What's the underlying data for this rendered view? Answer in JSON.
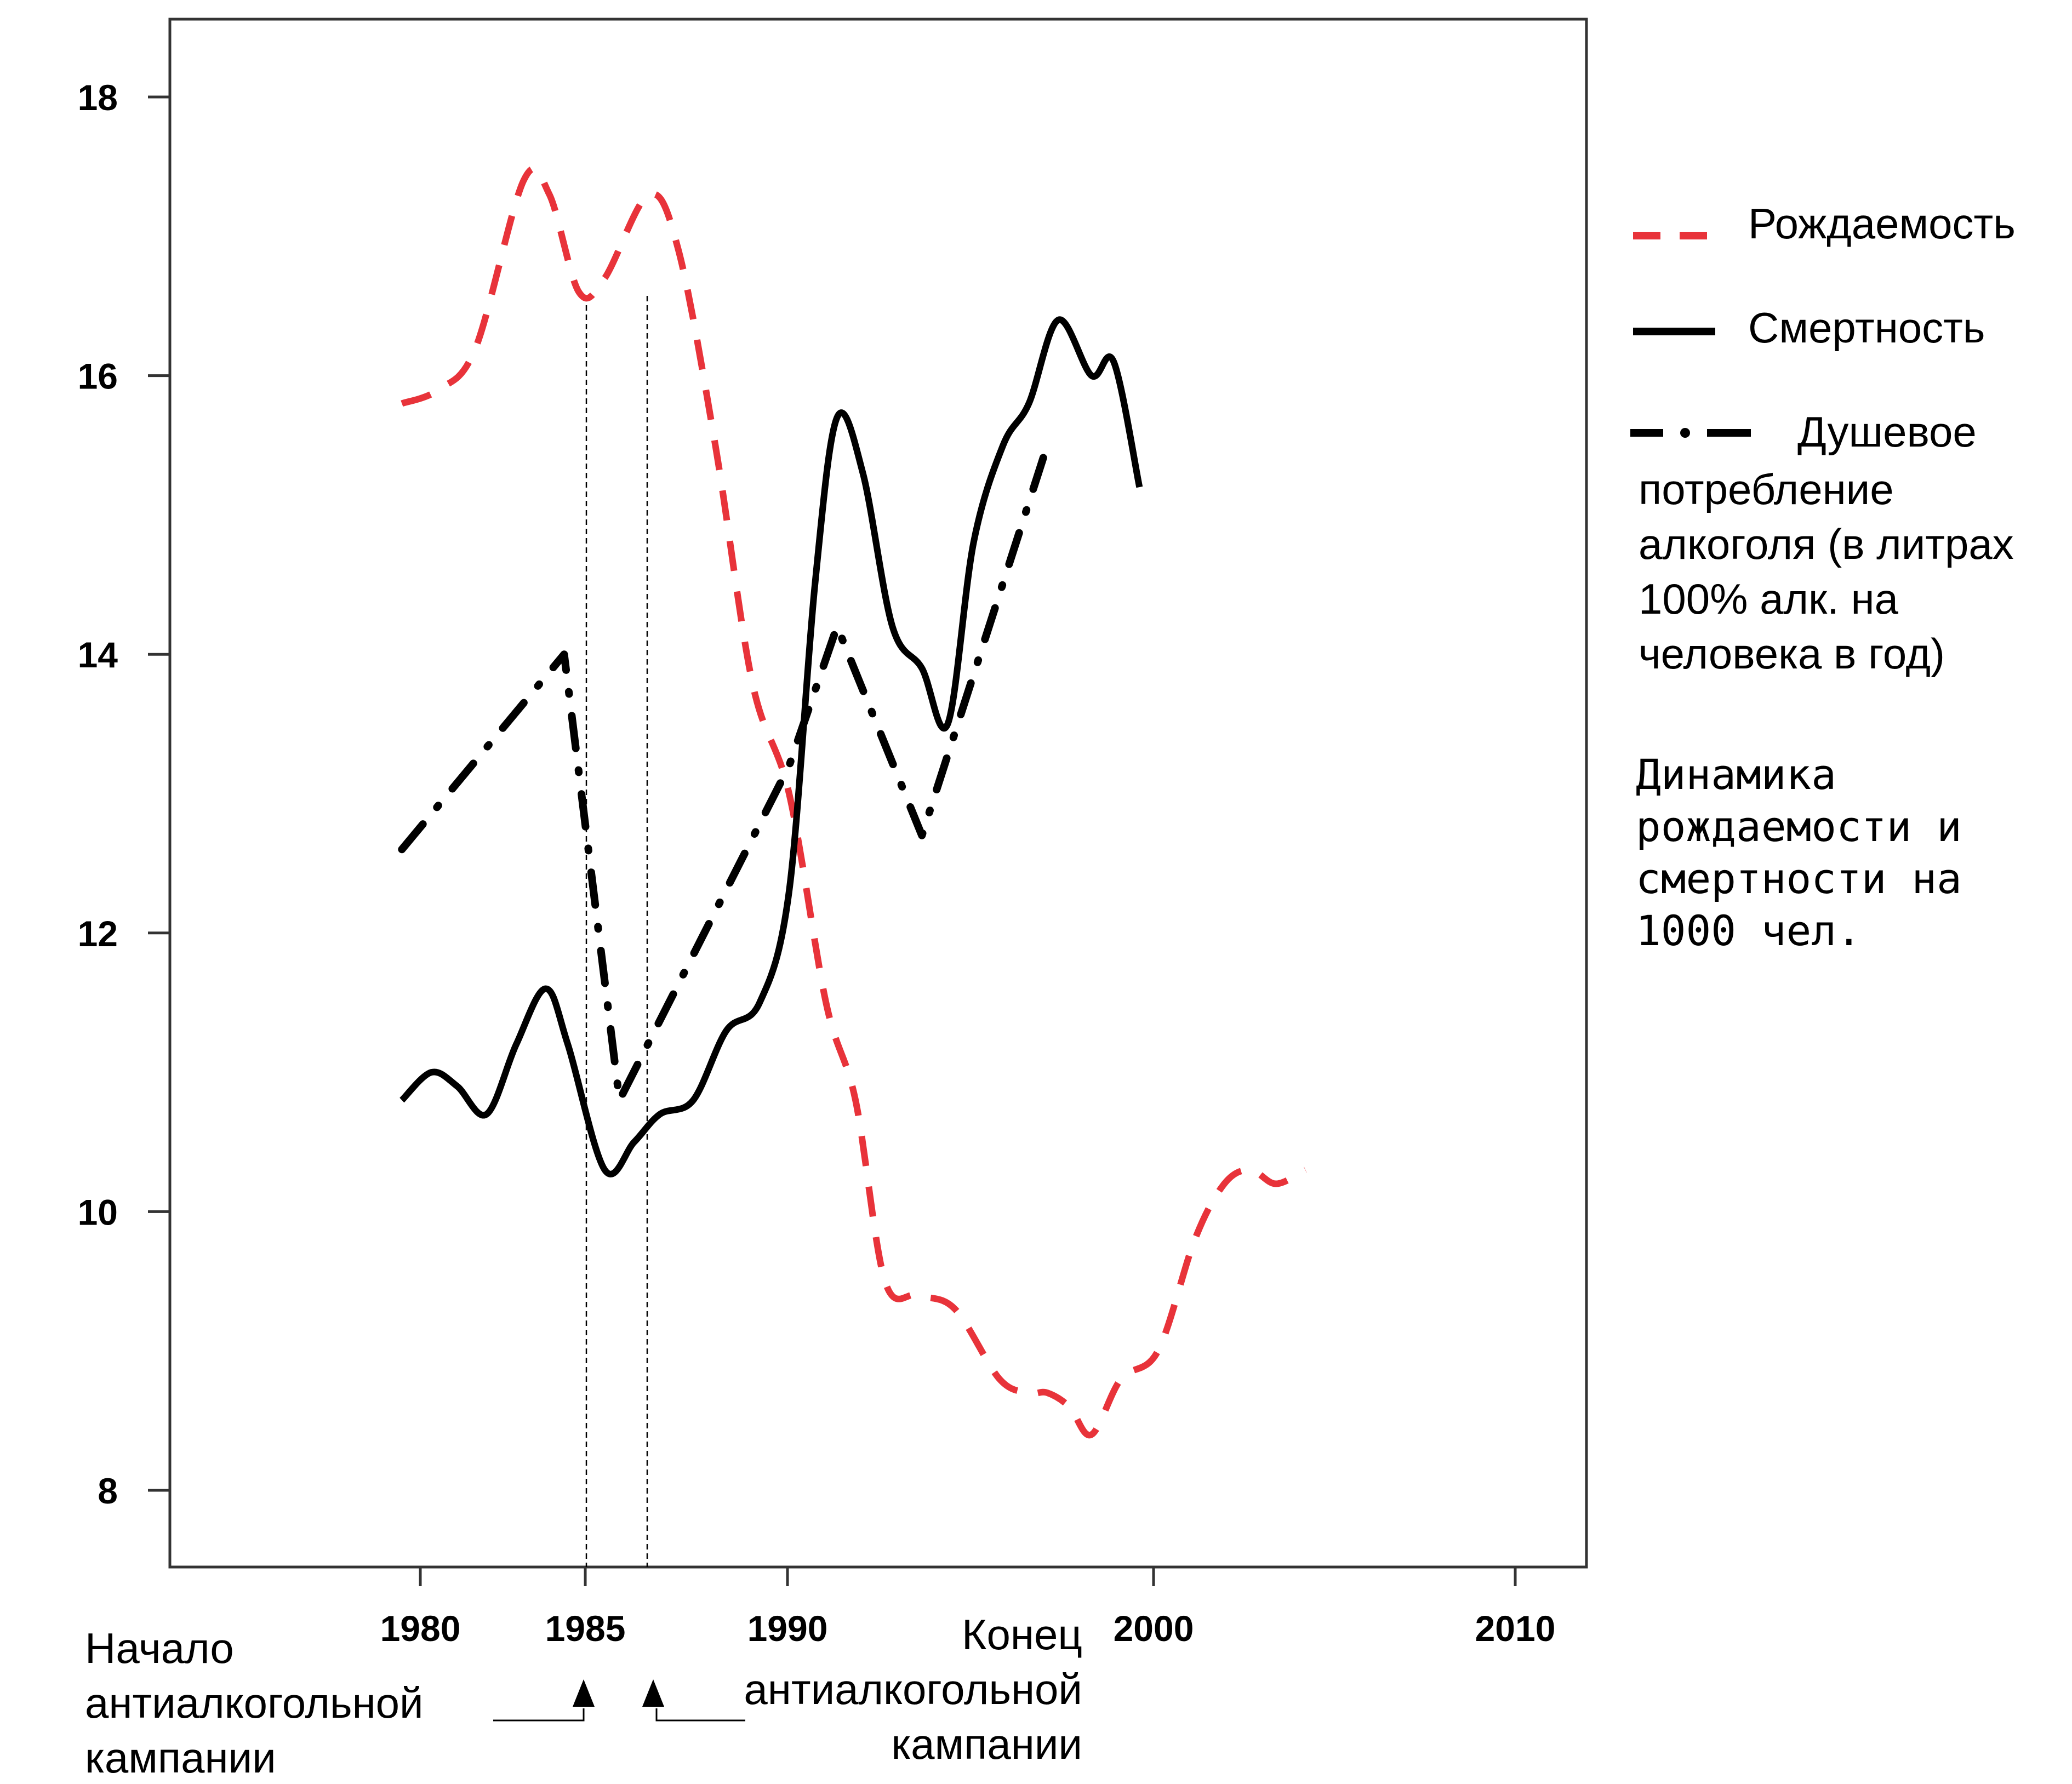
{
  "chart_data": {
    "type": "line",
    "xlim": [
      1980,
      2010
    ],
    "ylim": [
      8,
      18
    ],
    "x_ticks": [
      "1980",
      "1985",
      "1990",
      "2000",
      "2010"
    ],
    "y_ticks": [
      "8",
      "10",
      "12",
      "14",
      "16",
      "18"
    ],
    "grid": false,
    "legend_position": "right",
    "series": [
      {
        "name": "Рождаемость",
        "style": "dashed",
        "color": "#e8333a",
        "points": [
          [
            1979.5,
            15.8
          ],
          [
            1980.5,
            15.9
          ],
          [
            1981.5,
            16.2
          ],
          [
            1982.8,
            17.4
          ],
          [
            1983.5,
            17.3
          ],
          [
            1984.3,
            16.6
          ],
          [
            1985.0,
            16.7
          ],
          [
            1986.2,
            17.3
          ],
          [
            1987.0,
            16.9
          ],
          [
            1988.0,
            15.5
          ],
          [
            1989.0,
            13.8
          ],
          [
            1990.0,
            13.0
          ],
          [
            1991.0,
            11.5
          ],
          [
            1991.8,
            10.8
          ],
          [
            1992.6,
            9.5
          ],
          [
            1993.5,
            9.4
          ],
          [
            1994.5,
            9.3
          ],
          [
            1995.7,
            8.8
          ],
          [
            1996.5,
            8.7
          ],
          [
            1997.0,
            8.7
          ],
          [
            1997.6,
            8.6
          ],
          [
            1998.2,
            8.4
          ],
          [
            1999.0,
            8.8
          ],
          [
            2000.0,
            9.0
          ],
          [
            2001.0,
            9.8
          ],
          [
            2001.8,
            10.2
          ],
          [
            2002.5,
            10.3
          ],
          [
            2003.2,
            10.2
          ],
          [
            2004.0,
            10.3
          ]
        ]
      },
      {
        "name": "Смертность",
        "style": "solid",
        "color": "#000000",
        "points": [
          [
            1979.5,
            10.8
          ],
          [
            1980.3,
            11.0
          ],
          [
            1981.0,
            10.9
          ],
          [
            1981.8,
            10.7
          ],
          [
            1982.6,
            11.2
          ],
          [
            1983.4,
            11.6
          ],
          [
            1984.0,
            11.2
          ],
          [
            1985.0,
            10.3
          ],
          [
            1985.8,
            10.5
          ],
          [
            1986.5,
            10.7
          ],
          [
            1987.4,
            10.8
          ],
          [
            1988.3,
            11.3
          ],
          [
            1989.2,
            11.5
          ],
          [
            1990.0,
            12.3
          ],
          [
            1990.7,
            14.5
          ],
          [
            1991.3,
            15.7
          ],
          [
            1992.0,
            15.3
          ],
          [
            1992.8,
            14.2
          ],
          [
            1993.6,
            13.9
          ],
          [
            1994.3,
            13.5
          ],
          [
            1995.0,
            14.8
          ],
          [
            1995.8,
            15.5
          ],
          [
            1996.5,
            15.8
          ],
          [
            1997.3,
            16.4
          ],
          [
            1998.2,
            16.0
          ],
          [
            1998.8,
            16.1
          ],
          [
            1999.5,
            15.2
          ]
        ]
      },
      {
        "name": "Душевое потребление алкоголя (в литрах 100% алк. на человека в год)",
        "style": "dash-dot",
        "color": "#000000",
        "points": [
          [
            1979.5,
            12.6
          ],
          [
            1983.9,
            14.0
          ],
          [
            1985.4,
            10.8
          ],
          [
            1990.0,
            13.2
          ],
          [
            1991.3,
            14.2
          ],
          [
            1993.6,
            12.7
          ],
          [
            1997.0,
            15.5
          ]
        ]
      }
    ]
  },
  "legend": [
    {
      "label": "Рождаемость"
    },
    {
      "label": "Смертность"
    },
    {
      "label": "Душевое",
      "lines": [
        "потребление",
        "алкоголя (в литрах",
        "100% алк. на",
        "человека в год)"
      ]
    }
  ],
  "note": [
    "Динамика",
    "рождаемости и",
    "смертности на",
    "1000 чел."
  ],
  "annotations": {
    "start": [
      "Начало",
      "антиалкогольной",
      "кампании"
    ],
    "end": [
      "Конец",
      "антиалкогольной",
      "кампании"
    ]
  }
}
